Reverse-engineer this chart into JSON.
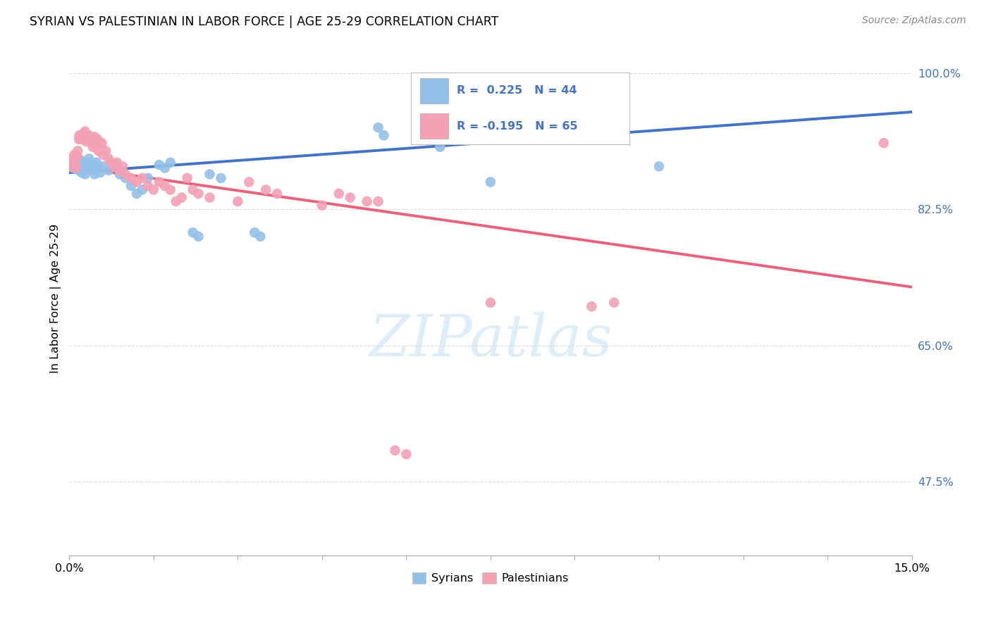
{
  "title": "SYRIAN VS PALESTINIAN IN LABOR FORCE | AGE 25-29 CORRELATION CHART",
  "source": "Source: ZipAtlas.com",
  "ylabel": "In Labor Force | Age 25-29",
  "yticks": [
    47.5,
    65.0,
    82.5,
    100.0
  ],
  "xlim": [
    0.0,
    15.0
  ],
  "ylim": [
    38.0,
    104.0
  ],
  "syrian_color": "#92C0E8",
  "palestinian_color": "#F4A0B5",
  "syrian_line_color": "#4472C4",
  "palestinian_line_color": "#E8607A",
  "R_syrian": 0.225,
  "N_syrian": 44,
  "R_palestinian": -0.195,
  "N_palestinian": 65,
  "syrian_line": [
    [
      0.0,
      87.2
    ],
    [
      15.0,
      95.0
    ]
  ],
  "palestinian_line": [
    [
      0.0,
      88.0
    ],
    [
      15.0,
      72.5
    ]
  ],
  "syrian_points": [
    [
      0.05,
      88.2
    ],
    [
      0.07,
      87.8
    ],
    [
      0.1,
      88.5
    ],
    [
      0.12,
      88.0
    ],
    [
      0.15,
      89.0
    ],
    [
      0.17,
      87.5
    ],
    [
      0.2,
      88.8
    ],
    [
      0.22,
      87.2
    ],
    [
      0.25,
      88.3
    ],
    [
      0.28,
      87.0
    ],
    [
      0.3,
      88.5
    ],
    [
      0.32,
      87.8
    ],
    [
      0.35,
      89.0
    ],
    [
      0.38,
      88.0
    ],
    [
      0.4,
      87.5
    ],
    [
      0.42,
      88.2
    ],
    [
      0.45,
      87.0
    ],
    [
      0.48,
      88.5
    ],
    [
      0.5,
      87.8
    ],
    [
      0.55,
      87.2
    ],
    [
      0.6,
      88.0
    ],
    [
      0.7,
      87.5
    ],
    [
      0.8,
      88.2
    ],
    [
      0.9,
      87.0
    ],
    [
      1.0,
      86.5
    ],
    [
      1.1,
      85.5
    ],
    [
      1.2,
      84.5
    ],
    [
      1.3,
      85.0
    ],
    [
      1.4,
      86.5
    ],
    [
      1.6,
      88.2
    ],
    [
      1.7,
      87.8
    ],
    [
      1.8,
      88.5
    ],
    [
      2.2,
      79.5
    ],
    [
      2.3,
      79.0
    ],
    [
      2.5,
      87.0
    ],
    [
      2.7,
      86.5
    ],
    [
      3.3,
      79.5
    ],
    [
      3.4,
      79.0
    ],
    [
      5.5,
      93.0
    ],
    [
      5.6,
      92.0
    ],
    [
      6.5,
      91.5
    ],
    [
      6.6,
      90.5
    ],
    [
      7.5,
      86.0
    ],
    [
      10.5,
      88.0
    ]
  ],
  "palestinian_points": [
    [
      0.03,
      88.5
    ],
    [
      0.05,
      89.0
    ],
    [
      0.07,
      88.0
    ],
    [
      0.09,
      89.5
    ],
    [
      0.1,
      88.2
    ],
    [
      0.12,
      87.8
    ],
    [
      0.14,
      89.2
    ],
    [
      0.15,
      90.0
    ],
    [
      0.17,
      91.5
    ],
    [
      0.18,
      92.0
    ],
    [
      0.2,
      91.8
    ],
    [
      0.22,
      91.5
    ],
    [
      0.25,
      92.2
    ],
    [
      0.27,
      91.8
    ],
    [
      0.28,
      92.5
    ],
    [
      0.3,
      91.2
    ],
    [
      0.32,
      91.8
    ],
    [
      0.35,
      92.0
    ],
    [
      0.38,
      91.5
    ],
    [
      0.4,
      91.0
    ],
    [
      0.42,
      90.5
    ],
    [
      0.45,
      91.8
    ],
    [
      0.48,
      90.8
    ],
    [
      0.5,
      91.5
    ],
    [
      0.52,
      90.0
    ],
    [
      0.55,
      90.8
    ],
    [
      0.58,
      91.0
    ],
    [
      0.6,
      89.5
    ],
    [
      0.65,
      90.0
    ],
    [
      0.7,
      89.0
    ],
    [
      0.75,
      88.5
    ],
    [
      0.8,
      88.0
    ],
    [
      0.85,
      88.5
    ],
    [
      0.9,
      87.5
    ],
    [
      0.95,
      88.0
    ],
    [
      1.0,
      87.0
    ],
    [
      1.1,
      86.5
    ],
    [
      1.2,
      86.0
    ],
    [
      1.3,
      86.5
    ],
    [
      1.4,
      85.5
    ],
    [
      1.5,
      85.0
    ],
    [
      1.6,
      86.0
    ],
    [
      1.7,
      85.5
    ],
    [
      1.8,
      85.0
    ],
    [
      1.9,
      83.5
    ],
    [
      2.0,
      84.0
    ],
    [
      2.1,
      86.5
    ],
    [
      2.2,
      85.0
    ],
    [
      2.3,
      84.5
    ],
    [
      2.5,
      84.0
    ],
    [
      3.0,
      83.5
    ],
    [
      3.2,
      86.0
    ],
    [
      3.5,
      85.0
    ],
    [
      3.7,
      84.5
    ],
    [
      4.5,
      83.0
    ],
    [
      4.8,
      84.5
    ],
    [
      5.0,
      84.0
    ],
    [
      5.3,
      83.5
    ],
    [
      5.5,
      83.5
    ],
    [
      5.8,
      51.5
    ],
    [
      6.0,
      51.0
    ],
    [
      7.5,
      70.5
    ],
    [
      9.3,
      70.0
    ],
    [
      9.7,
      70.5
    ],
    [
      14.5,
      91.0
    ]
  ],
  "watermark_text": "ZIPatlas",
  "background_color": "#FFFFFF",
  "grid_color": "#DDDDDD"
}
